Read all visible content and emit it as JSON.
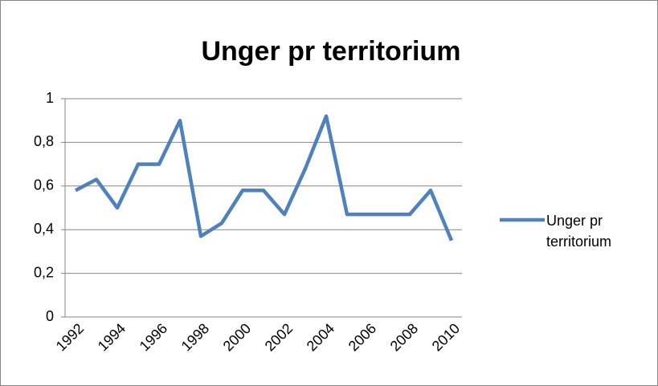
{
  "chart_data": {
    "type": "line",
    "title": "Unger pr territorium",
    "categories": [
      "1992",
      null,
      "1994",
      null,
      "1996",
      null,
      "1998",
      null,
      "2000",
      null,
      "2002",
      null,
      "2004",
      null,
      "2006",
      null,
      "2008",
      null,
      "2010"
    ],
    "series": [
      {
        "name": "Unger pr territorium",
        "color": "#4f81bd",
        "values": [
          0.58,
          0.63,
          0.5,
          0.7,
          0.7,
          0.9,
          0.37,
          0.43,
          0.58,
          0.58,
          0.47,
          0.68,
          0.92,
          0.47,
          0.47,
          0.47,
          0.47,
          0.58,
          0.35
        ]
      }
    ],
    "ylim": [
      0,
      1
    ],
    "yticks": [
      0,
      {
        "value": 0.2,
        "label": "0,2"
      },
      {
        "value": 0.4,
        "label": "0,4"
      },
      {
        "value": 0.6,
        "label": "0,6"
      },
      {
        "value": 0.8,
        "label": "0,8"
      },
      1
    ],
    "grid": true,
    "legend": "right"
  }
}
